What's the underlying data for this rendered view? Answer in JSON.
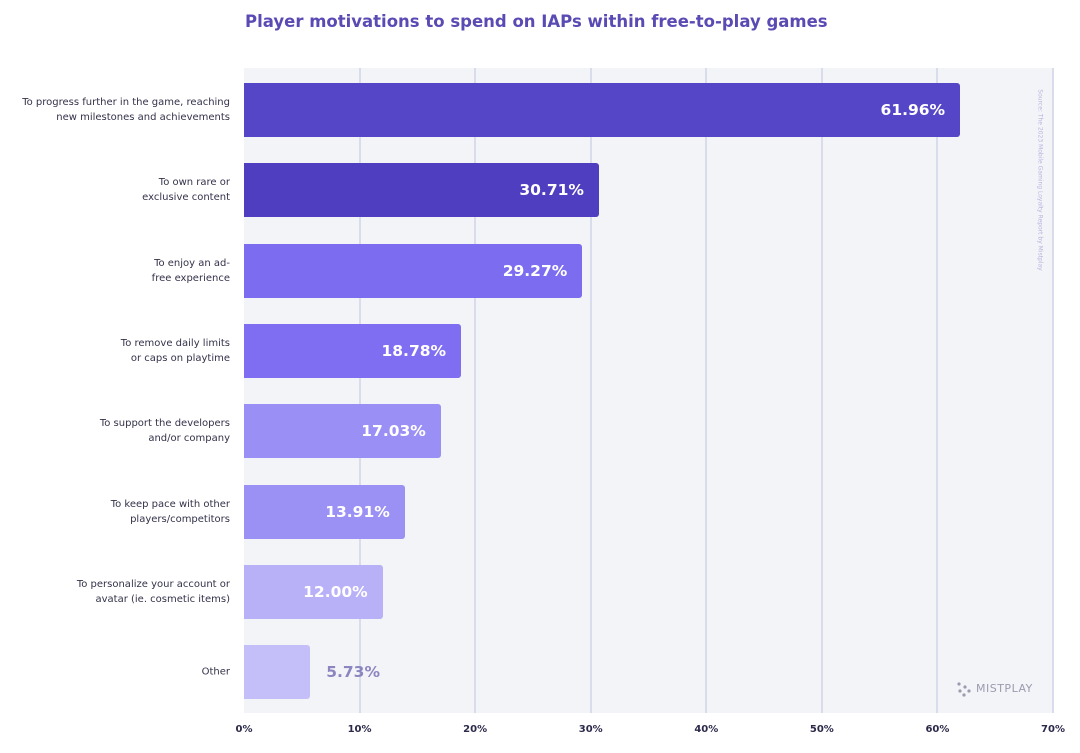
{
  "chart_data": {
    "type": "bar",
    "orientation": "horizontal",
    "title": "Player motivations to spend on IAPs within free-to-play games",
    "categories": [
      "To progress further in the game, reaching\nnew milestones and achievements",
      "To own rare or\nexclusive content",
      "To enjoy an ad-\nfree experience",
      "To remove daily limits\nor caps on playtime",
      "To support the developers\nand/or company",
      "To keep pace with other\nplayers/competitors",
      "To personalize your account or\navatar (ie. cosmetic items)",
      "Other"
    ],
    "values": [
      61.96,
      30.71,
      29.27,
      18.78,
      17.03,
      13.91,
      12.0,
      5.73
    ],
    "value_labels": [
      "61.96%",
      "30.71%",
      "29.27%",
      "18.78%",
      "17.03%",
      "13.91%",
      "12.00%",
      "5.73%"
    ],
    "colors": [
      "#5546c8",
      "#4f3fc0",
      "#7b6cf0",
      "#7f6ef2",
      "#9a8ff5",
      "#9b90f4",
      "#b8b1f8",
      "#c4bff9"
    ],
    "xlim": [
      0,
      70
    ],
    "xticks": [
      {
        "value": 0,
        "label": "0%"
      },
      {
        "value": 10,
        "label": "10%"
      },
      {
        "value": 20,
        "label": "20%"
      },
      {
        "value": 30,
        "label": "30%"
      },
      {
        "value": 40,
        "label": "40%"
      },
      {
        "value": 50,
        "label": "50%"
      },
      {
        "value": 60,
        "label": "60%"
      },
      {
        "value": 70,
        "label": "70%"
      }
    ],
    "grid": true,
    "source": "Source: The 2023 Mobile Gaming Loyalty Report by Mistplay",
    "logo": "MISTPLAY"
  }
}
